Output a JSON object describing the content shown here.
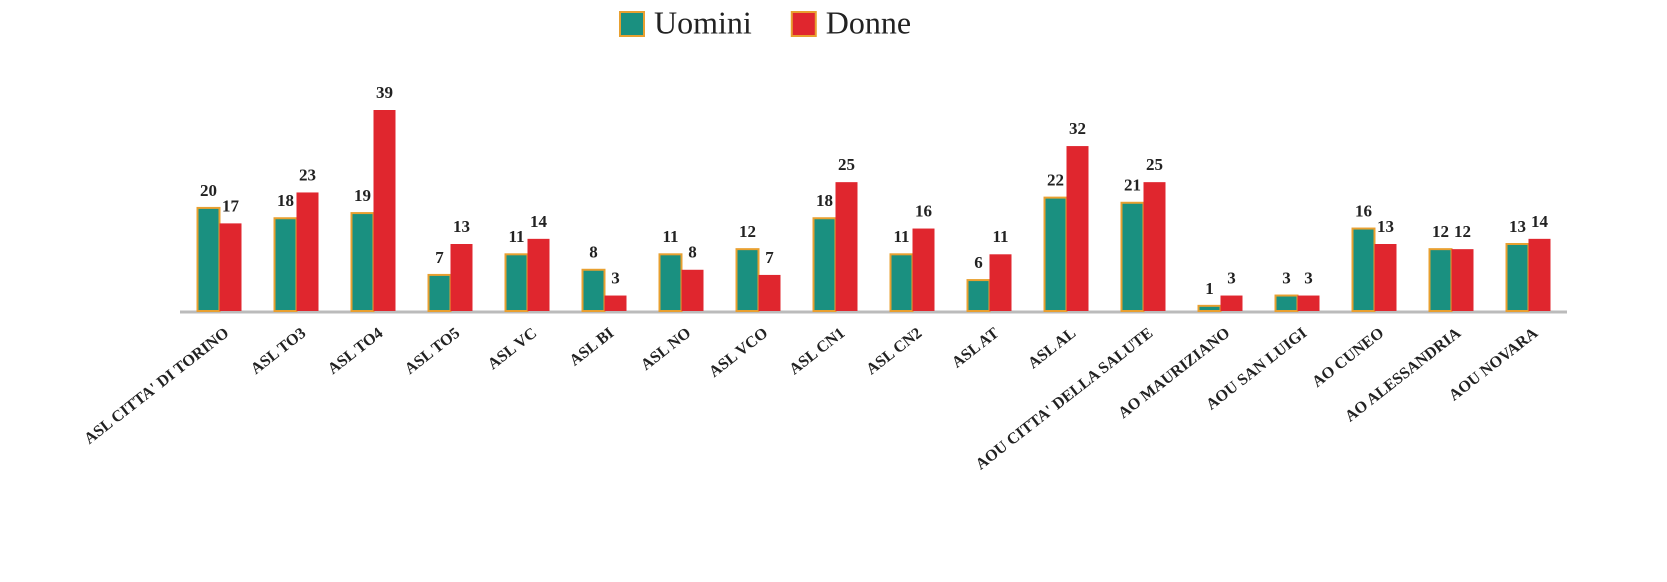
{
  "chart_data": {
    "type": "bar",
    "categories": [
      "ASL CITTA' DI TORINO",
      "ASL TO3",
      "ASL TO4",
      "ASL TO5",
      "ASL VC",
      "ASL BI",
      "ASL NO",
      "ASL VCO",
      "ASL CN1",
      "ASL CN2",
      "ASL AT",
      "ASL AL",
      "AOU CITTA' DELLA SALUTE",
      "AO MAURIZIANO",
      "AOU SAN LUIGI",
      "AO CUNEO",
      "AO ALESSANDRIA",
      "AOU NOVARA"
    ],
    "series": [
      {
        "name": "Uomini",
        "color": "#1a9080",
        "values": [
          20,
          18,
          19,
          7,
          11,
          8,
          11,
          12,
          18,
          11,
          6,
          22,
          21,
          1,
          3,
          16,
          12,
          13
        ]
      },
      {
        "name": "Donne",
        "color": "#e0262e",
        "values": [
          17,
          23,
          39,
          13,
          14,
          3,
          8,
          7,
          25,
          16,
          11,
          32,
          25,
          3,
          3,
          13,
          12,
          14
        ]
      }
    ],
    "legend": "top"
  }
}
